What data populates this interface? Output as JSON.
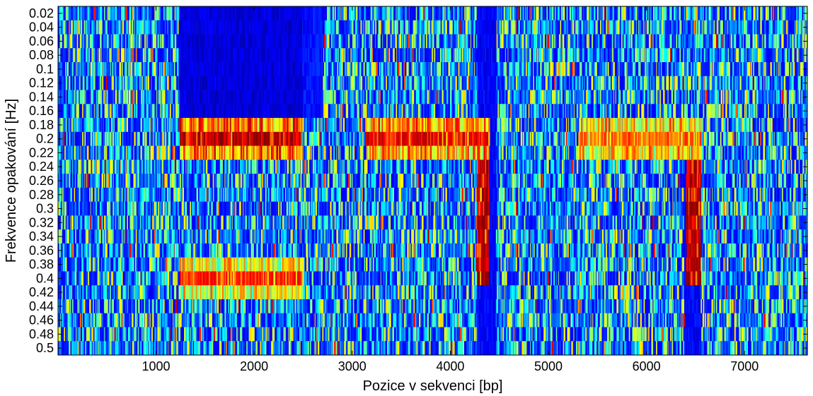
{
  "chart_data": {
    "type": "heatmap",
    "title": "",
    "xlabel": "Pozice v sekvenci [bp]",
    "ylabel": "Frekvence opakování [Hz]",
    "x_ticks": [
      1000,
      2000,
      3000,
      4000,
      5000,
      6000,
      7000
    ],
    "x_range": [
      1,
      7640
    ],
    "y_ticks": [
      "0.02",
      "0.04",
      "0.06",
      "0.08",
      "0.1",
      "0.12",
      "0.14",
      "0.16",
      "0.18",
      "0.2",
      "0.22",
      "0.24",
      "0.26",
      "0.28",
      "0.3",
      "0.32",
      "0.34",
      "0.36",
      "0.38",
      "0.4",
      "0.42",
      "0.44",
      "0.46",
      "0.48",
      "0.5"
    ],
    "y_values": [
      0.02,
      0.04,
      0.06,
      0.08,
      0.1,
      0.12,
      0.14,
      0.16,
      0.18,
      0.2,
      0.22,
      0.24,
      0.26,
      0.28,
      0.3,
      0.32,
      0.34,
      0.36,
      0.38,
      0.4,
      0.42,
      0.44,
      0.46,
      0.48,
      0.5
    ],
    "colormap": "jet",
    "color_range": [
      0,
      1
    ],
    "high_intensity_regions": [
      {
        "x_range": [
          1230,
          2490
        ],
        "frequencies": [
          0.2
        ],
        "level": 1.0
      },
      {
        "x_range": [
          1230,
          2490
        ],
        "frequencies": [
          0.18,
          0.22
        ],
        "level": 0.75
      },
      {
        "x_range": [
          1230,
          2490
        ],
        "frequencies": [
          0.4
        ],
        "level": 0.9
      },
      {
        "x_range": [
          1230,
          2490
        ],
        "frequencies": [
          0.38,
          0.42
        ],
        "level": 0.6
      },
      {
        "x_range": [
          3130,
          4390
        ],
        "frequencies": [
          0.2
        ],
        "level": 0.95
      },
      {
        "x_range": [
          3130,
          4390
        ],
        "frequencies": [
          0.18,
          0.22
        ],
        "level": 0.7
      },
      {
        "x_range": [
          5300,
          6550
        ],
        "frequencies": [
          0.2
        ],
        "level": 0.85
      },
      {
        "x_range": [
          5300,
          6550
        ],
        "frequencies": [
          0.18,
          0.22
        ],
        "level": 0.65
      },
      {
        "x_range": [
          6400,
          6550
        ],
        "frequencies": [
          0.2,
          0.4
        ],
        "level": 1.0
      },
      {
        "x_range": [
          4260,
          4390
        ],
        "frequencies": [
          0.2,
          0.4
        ],
        "level": 1.0
      }
    ],
    "low_intensity_regions": [
      {
        "x_range": [
          1230,
          2490
        ],
        "frequencies": [
          0.02,
          0.16
        ],
        "level": 0.05
      },
      {
        "x_range": [
          4270,
          4460
        ],
        "frequencies": [
          0.02,
          0.5
        ],
        "level": 0.08
      },
      {
        "x_range": [
          6380,
          6550
        ],
        "frequencies": [
          0.24,
          0.5
        ],
        "level": 0.08
      },
      {
        "x_range": [
          2490,
          2700
        ],
        "frequencies": [
          0.02,
          0.16
        ],
        "level": 0.1
      }
    ],
    "grid": false,
    "legend": "none"
  }
}
